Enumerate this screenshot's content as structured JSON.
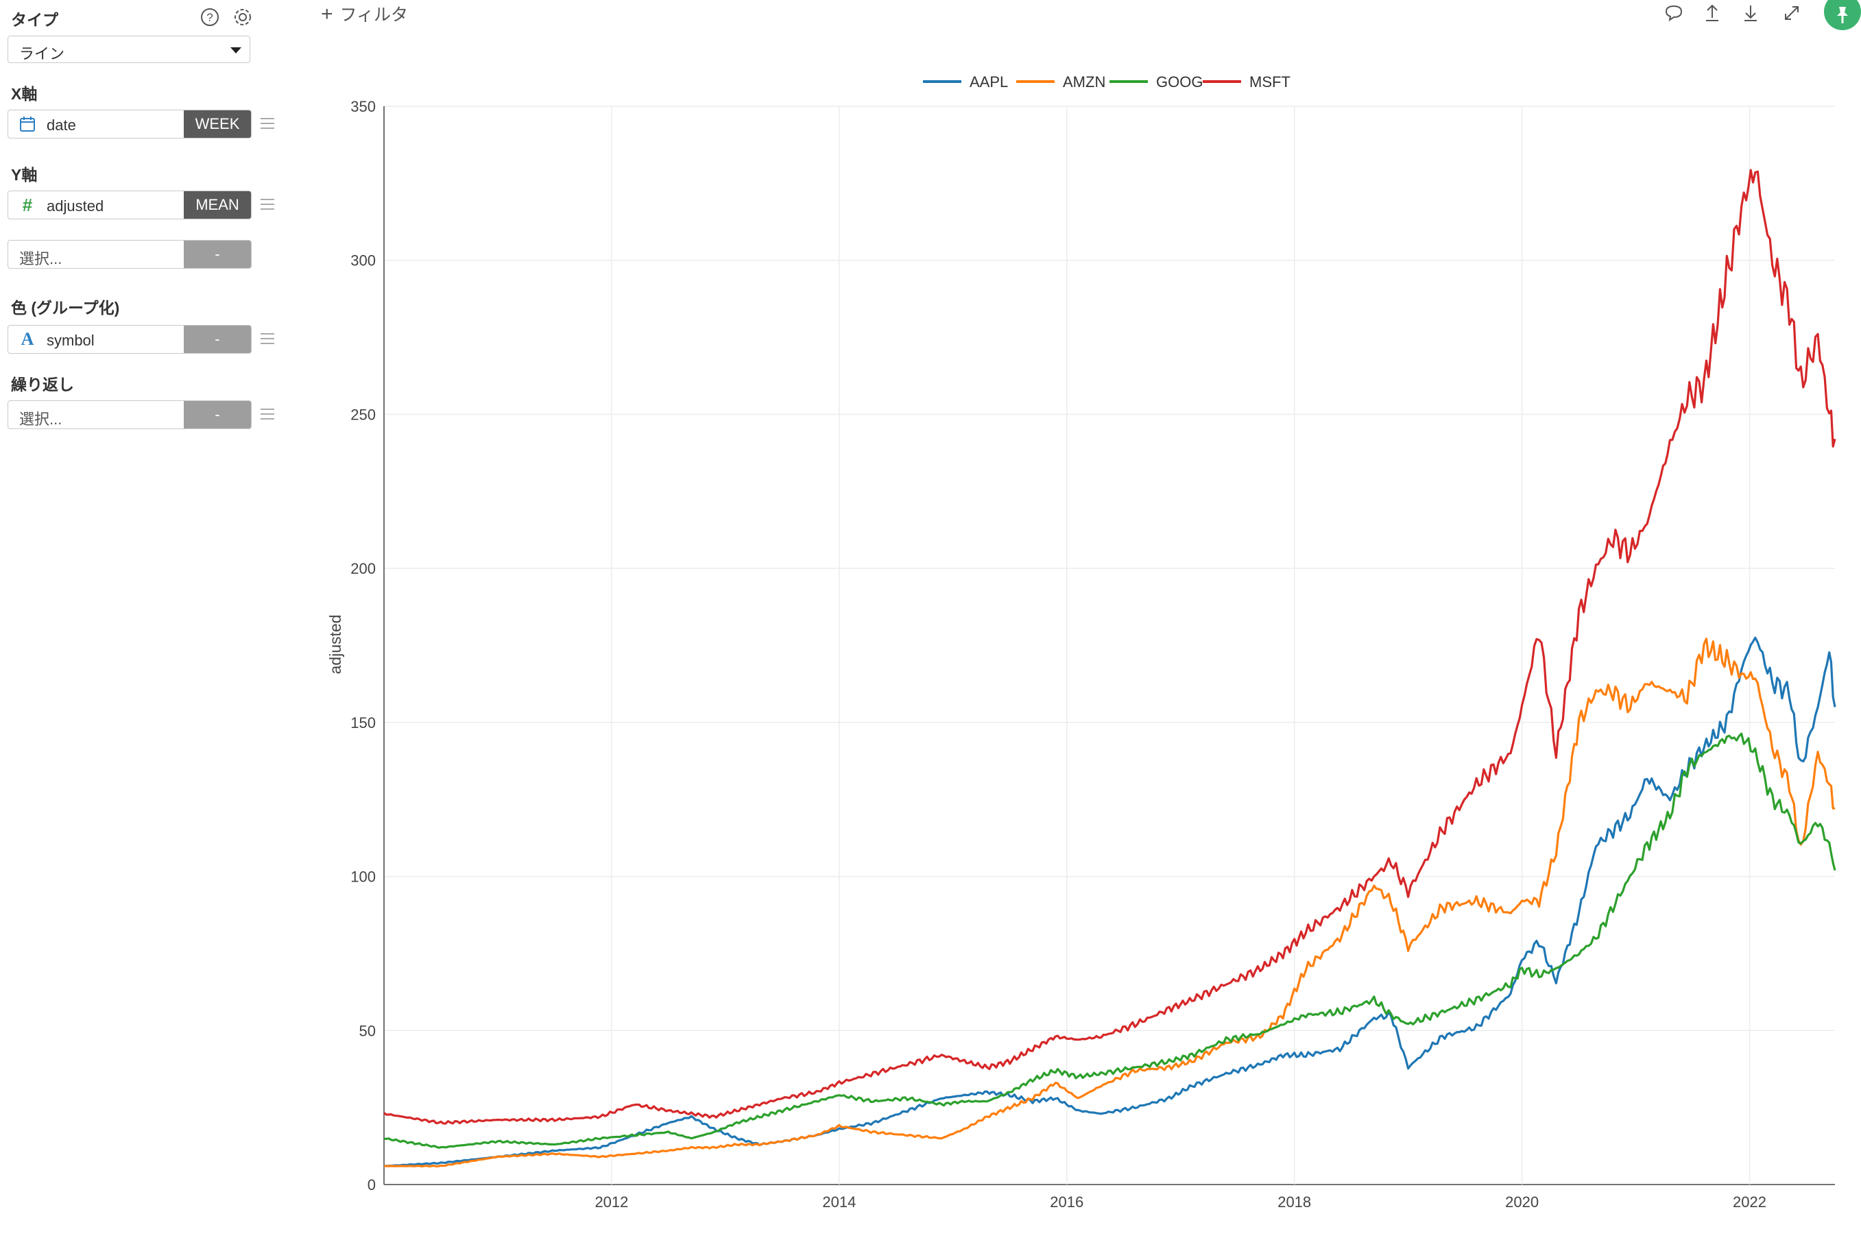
{
  "sidebar": {
    "type_label": "タイプ",
    "type_value": "ライン",
    "x_label": "X軸",
    "x_field": "date",
    "x_agg": "WEEK",
    "y_label": "Y軸",
    "y_field": "adjusted",
    "y_agg": "MEAN",
    "y2_placeholder": "選択...",
    "y2_agg": "-",
    "color_label": "色 (グループ化)",
    "color_field": "symbol",
    "color_agg": "-",
    "repeat_label": "繰り返し",
    "repeat_placeholder": "選択...",
    "repeat_agg": "-",
    "icons": {
      "help": "help-circle-icon",
      "settings": "gear-icon",
      "date": "calendar-icon",
      "number": "hash-icon",
      "text": "text-a-icon",
      "drag": "drag-handle-icon"
    }
  },
  "toolbar": {
    "filter_plus": "+",
    "filter_label": "フィルタ",
    "icons": [
      "comment-icon",
      "upload-icon",
      "download-icon",
      "expand-icon",
      "pin-icon"
    ],
    "pin_color": "#3bb36f"
  },
  "chart_data": {
    "type": "line",
    "title": "",
    "xlabel": "",
    "ylabel": "adjusted",
    "xlim": [
      2010.0,
      2022.75
    ],
    "ylim": [
      0,
      350
    ],
    "yticks": [
      0,
      50,
      100,
      150,
      200,
      250,
      300,
      350
    ],
    "xticks": [
      "2012",
      "2014",
      "2016",
      "2018",
      "2020",
      "2022"
    ],
    "xtick_values": [
      2012,
      2014,
      2016,
      2018,
      2020,
      2022
    ],
    "grid": true,
    "legend_position": "top-center",
    "series": [
      {
        "name": "AAPL",
        "color": "#1f77b4",
        "x": [
          2010.0,
          2010.5,
          2011.0,
          2011.5,
          2011.9,
          2012.2,
          2012.5,
          2012.7,
          2012.9,
          2013.1,
          2013.3,
          2013.5,
          2013.8,
          2014.0,
          2014.3,
          2014.6,
          2014.9,
          2015.1,
          2015.3,
          2015.5,
          2015.7,
          2015.9,
          2016.1,
          2016.3,
          2016.6,
          2016.9,
          2017.1,
          2017.4,
          2017.7,
          2017.9,
          2018.1,
          2018.4,
          2018.7,
          2018.85,
          2019.0,
          2019.3,
          2019.6,
          2019.9,
          2020.0,
          2020.15,
          2020.3,
          2020.5,
          2020.65,
          2020.8,
          2020.95,
          2021.1,
          2021.3,
          2021.45,
          2021.6,
          2021.8,
          2021.95,
          2022.05,
          2022.2,
          2022.35,
          2022.45,
          2022.6,
          2022.7,
          2022.75
        ],
        "y": [
          6,
          7,
          9,
          11,
          12,
          16,
          20,
          22,
          18,
          15,
          13,
          14,
          16,
          18,
          20,
          24,
          28,
          29,
          30,
          29,
          27,
          28,
          24,
          23,
          25,
          28,
          32,
          36,
          39,
          42,
          42,
          44,
          54,
          55,
          38,
          48,
          51,
          62,
          73,
          79,
          66,
          88,
          110,
          115,
          120,
          132,
          125,
          135,
          142,
          150,
          170,
          178,
          163,
          160,
          135,
          155,
          173,
          155
        ]
      },
      {
        "name": "AMZN",
        "color": "#ff7f0e",
        "x": [
          2010.0,
          2010.5,
          2011.0,
          2011.5,
          2011.9,
          2012.2,
          2012.5,
          2012.7,
          2012.9,
          2013.1,
          2013.3,
          2013.5,
          2013.8,
          2014.0,
          2014.3,
          2014.6,
          2014.9,
          2015.1,
          2015.3,
          2015.5,
          2015.7,
          2015.9,
          2016.1,
          2016.3,
          2016.6,
          2016.9,
          2017.1,
          2017.4,
          2017.7,
          2017.9,
          2018.1,
          2018.4,
          2018.7,
          2018.85,
          2019.0,
          2019.3,
          2019.6,
          2019.9,
          2020.0,
          2020.15,
          2020.3,
          2020.5,
          2020.65,
          2020.8,
          2020.95,
          2021.1,
          2021.3,
          2021.45,
          2021.6,
          2021.8,
          2021.95,
          2022.05,
          2022.2,
          2022.35,
          2022.45,
          2022.6,
          2022.7,
          2022.75
        ],
        "y": [
          6,
          6,
          9,
          10,
          9,
          10,
          11,
          12,
          12,
          13,
          13,
          14,
          16,
          19,
          17,
          16,
          15,
          18,
          22,
          25,
          28,
          33,
          28,
          32,
          37,
          38,
          40,
          46,
          48,
          55,
          70,
          80,
          97,
          92,
          77,
          90,
          92,
          88,
          92,
          92,
          108,
          150,
          160,
          160,
          155,
          163,
          160,
          158,
          175,
          170,
          165,
          165,
          142,
          130,
          108,
          140,
          130,
          122
        ]
      },
      {
        "name": "GOOG",
        "color": "#2ca02c",
        "x": [
          2010.0,
          2010.5,
          2011.0,
          2011.5,
          2011.9,
          2012.2,
          2012.5,
          2012.7,
          2012.9,
          2013.1,
          2013.3,
          2013.5,
          2013.8,
          2014.0,
          2014.3,
          2014.6,
          2014.9,
          2015.1,
          2015.3,
          2015.5,
          2015.7,
          2015.9,
          2016.1,
          2016.3,
          2016.6,
          2016.9,
          2017.1,
          2017.4,
          2017.7,
          2017.9,
          2018.1,
          2018.4,
          2018.7,
          2018.85,
          2019.0,
          2019.3,
          2019.6,
          2019.9,
          2020.0,
          2020.15,
          2020.3,
          2020.5,
          2020.65,
          2020.8,
          2020.95,
          2021.1,
          2021.3,
          2021.45,
          2021.6,
          2021.8,
          2021.95,
          2022.05,
          2022.2,
          2022.35,
          2022.45,
          2022.6,
          2022.7,
          2022.75
        ],
        "y": [
          15,
          12,
          14,
          13,
          15,
          16,
          17,
          15,
          17,
          20,
          22,
          24,
          27,
          29,
          27,
          28,
          26,
          27,
          27,
          30,
          34,
          37,
          35,
          36,
          38,
          40,
          42,
          47,
          49,
          52,
          55,
          56,
          60,
          55,
          52,
          56,
          60,
          65,
          70,
          68,
          70,
          75,
          80,
          90,
          100,
          110,
          120,
          135,
          140,
          145,
          145,
          140,
          125,
          120,
          110,
          118,
          110,
          102
        ]
      },
      {
        "name": "MSFT",
        "color": "#d62728",
        "x": [
          2010.0,
          2010.5,
          2011.0,
          2011.5,
          2011.9,
          2012.2,
          2012.5,
          2012.7,
          2012.9,
          2013.1,
          2013.3,
          2013.5,
          2013.8,
          2014.0,
          2014.3,
          2014.6,
          2014.9,
          2015.1,
          2015.3,
          2015.5,
          2015.7,
          2015.9,
          2016.1,
          2016.3,
          2016.6,
          2016.9,
          2017.1,
          2017.4,
          2017.7,
          2017.9,
          2018.1,
          2018.4,
          2018.7,
          2018.85,
          2019.0,
          2019.3,
          2019.6,
          2019.9,
          2020.0,
          2020.15,
          2020.3,
          2020.5,
          2020.65,
          2020.8,
          2020.95,
          2021.1,
          2021.3,
          2021.45,
          2021.6,
          2021.8,
          2021.95,
          2022.05,
          2022.2,
          2022.35,
          2022.45,
          2022.6,
          2022.7,
          2022.75
        ],
        "y": [
          23,
          20,
          21,
          21,
          22,
          26,
          24,
          23,
          22,
          24,
          26,
          28,
          30,
          33,
          36,
          39,
          42,
          40,
          38,
          40,
          44,
          48,
          47,
          48,
          52,
          57,
          60,
          65,
          70,
          75,
          82,
          90,
          100,
          105,
          95,
          115,
          130,
          140,
          155,
          180,
          140,
          185,
          200,
          210,
          205,
          215,
          240,
          255,
          260,
          295,
          320,
          330,
          300,
          285,
          260,
          275,
          250,
          242
        ]
      }
    ]
  }
}
